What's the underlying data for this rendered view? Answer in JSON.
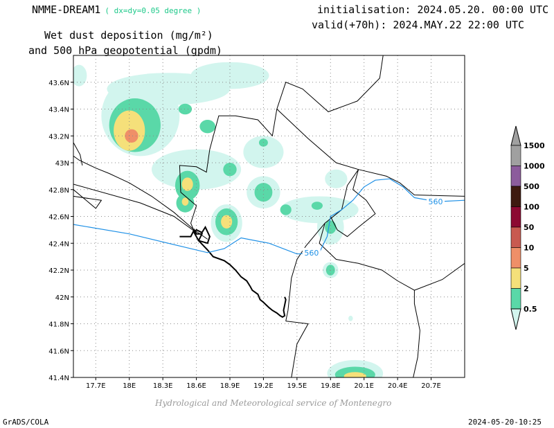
{
  "header": {
    "model": "NMME-DREAM1",
    "resolution": "( dx=dy=0.05 degree )",
    "variable_line1": "Wet dust deposition (mg/m²)",
    "variable_line2": "and 500 hPa geopotential (gpdm)",
    "initialisation": "initialisation: 2024.05.20. 00:00 UTC",
    "valid": "valid(+70h): 2024.MAY.22 22:00 UTC"
  },
  "footer": {
    "credit": "Hydrological and Meteorological service of Montenegro",
    "software": "GrADS/COLA",
    "timestamp": "2024-05-20-10:25"
  },
  "chart_data": {
    "type": "heatmap",
    "xlabel": "",
    "ylabel": "",
    "xlim": [
      17.5,
      21.0
    ],
    "ylim": [
      41.4,
      43.8
    ],
    "x_ticks": [
      17.7,
      18.0,
      18.3,
      18.6,
      18.9,
      19.2,
      19.5,
      19.8,
      20.1,
      20.4,
      20.7
    ],
    "x_tick_labels": [
      "17.7E",
      "18E",
      "18.3E",
      "18.6E",
      "18.9E",
      "19.2E",
      "19.5E",
      "19.8E",
      "20.1E",
      "20.4E",
      "20.7E"
    ],
    "y_ticks": [
      41.4,
      41.6,
      41.8,
      42.0,
      42.2,
      42.4,
      42.6,
      42.8,
      43.0,
      43.2,
      43.4,
      43.6
    ],
    "y_tick_labels": [
      "41.4N",
      "41.6N",
      "41.8N",
      "42N",
      "42.2N",
      "42.4N",
      "42.6N",
      "42.8N",
      "43N",
      "43.2N",
      "43.4N",
      "43.6N"
    ],
    "grid": true,
    "colorbar": {
      "labels": [
        "0.5",
        "2",
        "5",
        "10",
        "50",
        "100",
        "500",
        "1000",
        "1500"
      ],
      "colors": [
        "#d2f5ee",
        "#5ad8a8",
        "#f5e07a",
        "#ef8f68",
        "#c85a50",
        "#8c0a32",
        "#3e1a10",
        "#8c5c9c",
        "#a0a0a0"
      ]
    },
    "deposition_patches": [
      {
        "lon": 17.55,
        "lat": 43.65,
        "rx": 0.07,
        "ry": 0.08,
        "level": 0
      },
      {
        "lon": 18.35,
        "lat": 43.55,
        "rx": 0.55,
        "ry": 0.12,
        "level": 0
      },
      {
        "lon": 18.9,
        "lat": 43.65,
        "rx": 0.35,
        "ry": 0.1,
        "level": 0
      },
      {
        "lon": 18.1,
        "lat": 43.35,
        "rx": 0.35,
        "ry": 0.3,
        "level": 0
      },
      {
        "lon": 18.05,
        "lat": 43.28,
        "rx": 0.23,
        "ry": 0.2,
        "level": 1
      },
      {
        "lon": 18.0,
        "lat": 43.24,
        "rx": 0.14,
        "ry": 0.15,
        "level": 2
      },
      {
        "lon": 18.02,
        "lat": 43.2,
        "rx": 0.06,
        "ry": 0.05,
        "level": 3
      },
      {
        "lon": 18.5,
        "lat": 43.4,
        "rx": 0.06,
        "ry": 0.04,
        "level": 1
      },
      {
        "lon": 18.7,
        "lat": 43.27,
        "rx": 0.07,
        "ry": 0.05,
        "level": 1
      },
      {
        "lon": 18.6,
        "lat": 42.95,
        "rx": 0.4,
        "ry": 0.15,
        "level": 0
      },
      {
        "lon": 18.52,
        "lat": 42.83,
        "rx": 0.11,
        "ry": 0.11,
        "level": 1
      },
      {
        "lon": 18.52,
        "lat": 42.84,
        "rx": 0.05,
        "ry": 0.05,
        "level": 2
      },
      {
        "lon": 18.5,
        "lat": 42.7,
        "rx": 0.08,
        "ry": 0.07,
        "level": 1
      },
      {
        "lon": 18.5,
        "lat": 42.71,
        "rx": 0.03,
        "ry": 0.03,
        "level": 2
      },
      {
        "lon": 18.9,
        "lat": 42.95,
        "rx": 0.06,
        "ry": 0.05,
        "level": 1
      },
      {
        "lon": 19.2,
        "lat": 43.08,
        "rx": 0.18,
        "ry": 0.12,
        "level": 0
      },
      {
        "lon": 19.2,
        "lat": 43.15,
        "rx": 0.04,
        "ry": 0.03,
        "level": 1
      },
      {
        "lon": 19.2,
        "lat": 42.78,
        "rx": 0.15,
        "ry": 0.12,
        "level": 0
      },
      {
        "lon": 19.2,
        "lat": 42.78,
        "rx": 0.08,
        "ry": 0.07,
        "level": 1
      },
      {
        "lon": 18.87,
        "lat": 42.55,
        "rx": 0.14,
        "ry": 0.14,
        "level": 0
      },
      {
        "lon": 18.87,
        "lat": 42.56,
        "rx": 0.1,
        "ry": 0.1,
        "level": 1
      },
      {
        "lon": 18.87,
        "lat": 42.56,
        "rx": 0.05,
        "ry": 0.05,
        "level": 2
      },
      {
        "lon": 19.7,
        "lat": 42.65,
        "rx": 0.35,
        "ry": 0.1,
        "level": 0
      },
      {
        "lon": 19.4,
        "lat": 42.65,
        "rx": 0.05,
        "ry": 0.04,
        "level": 1
      },
      {
        "lon": 19.68,
        "lat": 42.68,
        "rx": 0.05,
        "ry": 0.03,
        "level": 1
      },
      {
        "lon": 19.85,
        "lat": 42.88,
        "rx": 0.1,
        "ry": 0.07,
        "level": 0
      },
      {
        "lon": 19.8,
        "lat": 42.52,
        "rx": 0.12,
        "ry": 0.13,
        "level": 0
      },
      {
        "lon": 19.8,
        "lat": 42.52,
        "rx": 0.05,
        "ry": 0.05,
        "level": 1
      },
      {
        "lon": 19.8,
        "lat": 42.2,
        "rx": 0.07,
        "ry": 0.06,
        "level": 0
      },
      {
        "lon": 19.8,
        "lat": 42.2,
        "rx": 0.04,
        "ry": 0.04,
        "level": 1
      },
      {
        "lon": 19.98,
        "lat": 41.84,
        "rx": 0.02,
        "ry": 0.02,
        "level": 0
      },
      {
        "lon": 20.02,
        "lat": 41.43,
        "rx": 0.25,
        "ry": 0.1,
        "level": 0
      },
      {
        "lon": 20.02,
        "lat": 41.42,
        "rx": 0.18,
        "ry": 0.06,
        "level": 1
      },
      {
        "lon": 20.02,
        "lat": 41.41,
        "rx": 0.1,
        "ry": 0.03,
        "level": 2
      }
    ],
    "contours": [
      {
        "label": "560",
        "color": "#1e90e6",
        "points": [
          [
            17.5,
            42.54
          ],
          [
            18.0,
            42.47
          ],
          [
            18.5,
            42.37
          ],
          [
            18.7,
            42.33
          ],
          [
            18.85,
            42.36
          ],
          [
            19.0,
            42.44
          ],
          [
            19.25,
            42.4
          ],
          [
            19.5,
            42.32
          ],
          [
            19.7,
            42.33
          ],
          [
            19.77,
            42.45
          ],
          [
            19.8,
            42.6
          ],
          [
            19.9,
            42.65
          ],
          [
            20.0,
            42.72
          ],
          [
            20.1,
            42.82
          ],
          [
            20.2,
            42.87
          ],
          [
            20.33,
            42.88
          ],
          [
            20.45,
            42.82
          ],
          [
            20.55,
            42.74
          ],
          [
            20.75,
            42.71
          ],
          [
            21.0,
            42.72
          ]
        ],
        "label_positions": [
          [
            19.63,
            42.33
          ],
          [
            20.74,
            42.71
          ]
        ]
      }
    ],
    "borders": [
      [
        [
          20.27,
          43.8
        ],
        [
          20.24,
          43.63
        ],
        [
          20.04,
          43.46
        ],
        [
          19.78,
          43.38
        ],
        [
          19.55,
          43.55
        ],
        [
          19.4,
          43.6
        ],
        [
          19.32,
          43.4
        ],
        [
          19.28,
          43.2
        ],
        [
          19.15,
          43.32
        ],
        [
          18.95,
          43.35
        ],
        [
          18.8,
          43.35
        ],
        [
          18.72,
          43.1
        ],
        [
          18.69,
          42.93
        ],
        [
          18.6,
          42.97
        ],
        [
          18.45,
          42.98
        ],
        [
          18.46,
          42.78
        ],
        [
          18.6,
          42.68
        ],
        [
          18.55,
          42.55
        ],
        [
          18.6,
          42.45
        ]
      ],
      [
        [
          19.32,
          43.4
        ],
        [
          19.6,
          43.18
        ],
        [
          19.85,
          43.0
        ],
        [
          20.05,
          42.95
        ],
        [
          20.3,
          42.9
        ],
        [
          20.42,
          42.85
        ],
        [
          20.55,
          42.76
        ],
        [
          21.0,
          42.75
        ]
      ],
      [
        [
          20.05,
          42.95
        ],
        [
          19.95,
          42.83
        ],
        [
          19.9,
          42.65
        ],
        [
          19.75,
          42.55
        ],
        [
          19.58,
          42.38
        ],
        [
          19.5,
          42.28
        ],
        [
          19.45,
          42.14
        ],
        [
          19.42,
          41.9
        ],
        [
          19.4,
          41.82
        ]
      ],
      [
        [
          20.05,
          42.95
        ],
        [
          20.0,
          42.8
        ],
        [
          20.12,
          42.72
        ],
        [
          20.2,
          42.62
        ],
        [
          20.05,
          42.52
        ],
        [
          19.95,
          42.45
        ],
        [
          19.86,
          42.5
        ],
        [
          19.8,
          42.6
        ]
      ],
      [
        [
          19.75,
          42.55
        ],
        [
          19.7,
          42.4
        ],
        [
          19.85,
          42.28
        ],
        [
          20.05,
          42.25
        ],
        [
          20.26,
          42.2
        ],
        [
          20.4,
          42.12
        ],
        [
          20.55,
          42.05
        ],
        [
          20.55,
          41.95
        ],
        [
          20.6,
          41.75
        ],
        [
          20.58,
          41.55
        ],
        [
          20.54,
          41.4
        ]
      ],
      [
        [
          20.55,
          42.05
        ],
        [
          20.8,
          42.13
        ],
        [
          21.0,
          42.25
        ]
      ],
      [
        [
          19.4,
          41.82
        ],
        [
          19.6,
          41.8
        ],
        [
          19.5,
          41.65
        ],
        [
          19.45,
          41.4
        ]
      ],
      [
        [
          17.5,
          43.05
        ],
        [
          17.55,
          43.02
        ],
        [
          17.7,
          42.96
        ],
        [
          17.82,
          42.92
        ],
        [
          18.0,
          42.85
        ],
        [
          18.2,
          42.75
        ],
        [
          18.4,
          42.63
        ],
        [
          18.58,
          42.5
        ],
        [
          18.7,
          42.43
        ]
      ],
      [
        [
          17.5,
          43.15
        ],
        [
          17.56,
          43.06
        ],
        [
          17.58,
          42.98
        ]
      ],
      [
        [
          17.5,
          42.84
        ],
        [
          18.1,
          42.7
        ],
        [
          18.4,
          42.6
        ],
        [
          18.6,
          42.48
        ]
      ],
      [
        [
          17.5,
          42.75
        ],
        [
          17.75,
          42.72
        ],
        [
          17.7,
          42.66
        ],
        [
          17.5,
          42.8
        ]
      ]
    ],
    "coastline": [
      [
        18.45,
        42.45
      ],
      [
        18.55,
        42.45
      ],
      [
        18.58,
        42.5
      ],
      [
        18.6,
        42.47
      ],
      [
        18.65,
        42.47
      ],
      [
        18.62,
        42.42
      ],
      [
        18.7,
        42.4
      ],
      [
        18.72,
        42.45
      ],
      [
        18.68,
        42.52
      ],
      [
        18.65,
        42.48
      ],
      [
        18.6,
        42.5
      ],
      [
        18.58,
        42.48
      ],
      [
        18.62,
        42.42
      ],
      [
        18.7,
        42.35
      ],
      [
        18.75,
        42.3
      ],
      [
        18.85,
        42.27
      ],
      [
        18.9,
        42.24
      ],
      [
        18.95,
        42.2
      ],
      [
        19.0,
        42.15
      ],
      [
        19.05,
        42.12
      ],
      [
        19.08,
        42.08
      ],
      [
        19.1,
        42.05
      ],
      [
        19.15,
        42.02
      ],
      [
        19.17,
        41.98
      ],
      [
        19.2,
        41.96
      ],
      [
        19.25,
        41.92
      ],
      [
        19.28,
        41.9
      ],
      [
        19.32,
        41.88
      ],
      [
        19.35,
        41.86
      ],
      [
        19.37,
        41.85
      ],
      [
        19.39,
        41.86
      ],
      [
        19.38,
        41.9
      ],
      [
        19.39,
        41.94
      ],
      [
        19.4,
        41.98
      ],
      [
        19.39,
        42.0
      ]
    ]
  }
}
